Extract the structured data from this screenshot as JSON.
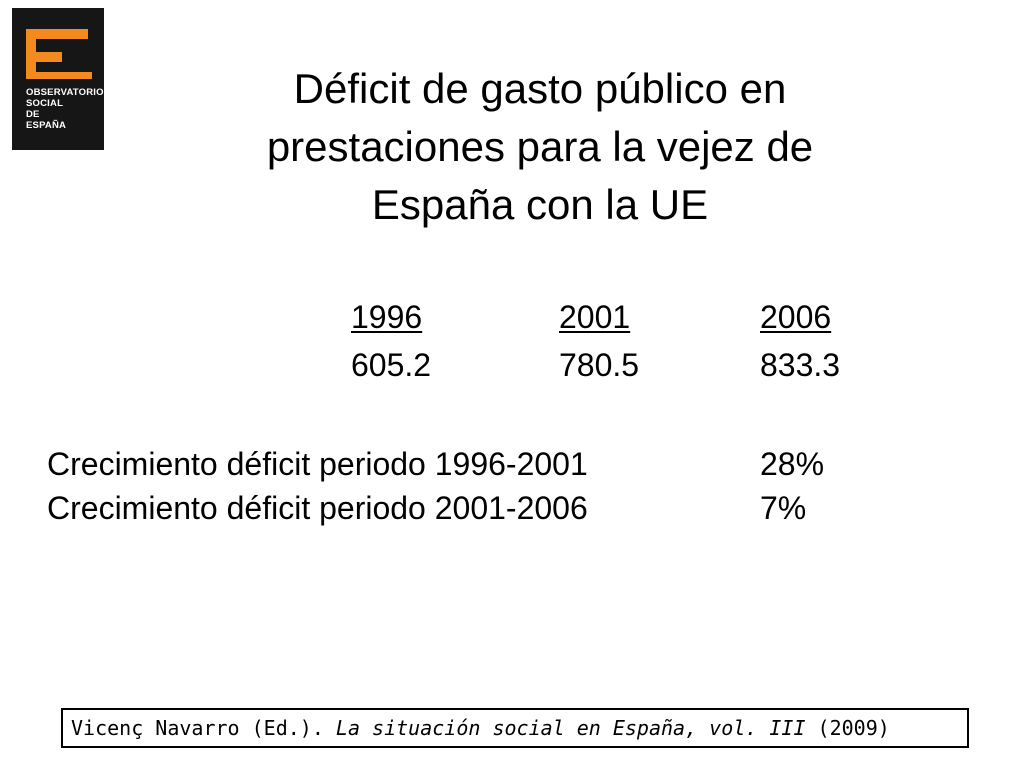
{
  "logo": {
    "lines": [
      "OBSERVATORIO",
      "SOCIAL",
      "DE",
      "ESPAÑA"
    ],
    "colors": {
      "background": "#161616",
      "accent": "#f28a1e"
    }
  },
  "title": {
    "lines": [
      "Déficit de gasto público en",
      "prestaciones para la vejez de",
      "España con la UE"
    ]
  },
  "table": {
    "years": [
      "1996",
      "2001",
      "2006"
    ],
    "values": [
      "605.2",
      "780.5",
      "833.3"
    ]
  },
  "growth": [
    {
      "label": "Crecimiento déficit periodo 1996-2001",
      "value": "28%"
    },
    {
      "label": "Crecimiento déficit periodo 2001-2006",
      "value": "7%"
    }
  ],
  "citation": {
    "author": "Vicenç Navarro (Ed.). ",
    "work": "La situación social en España, vol. III",
    "year": " (2009)"
  }
}
